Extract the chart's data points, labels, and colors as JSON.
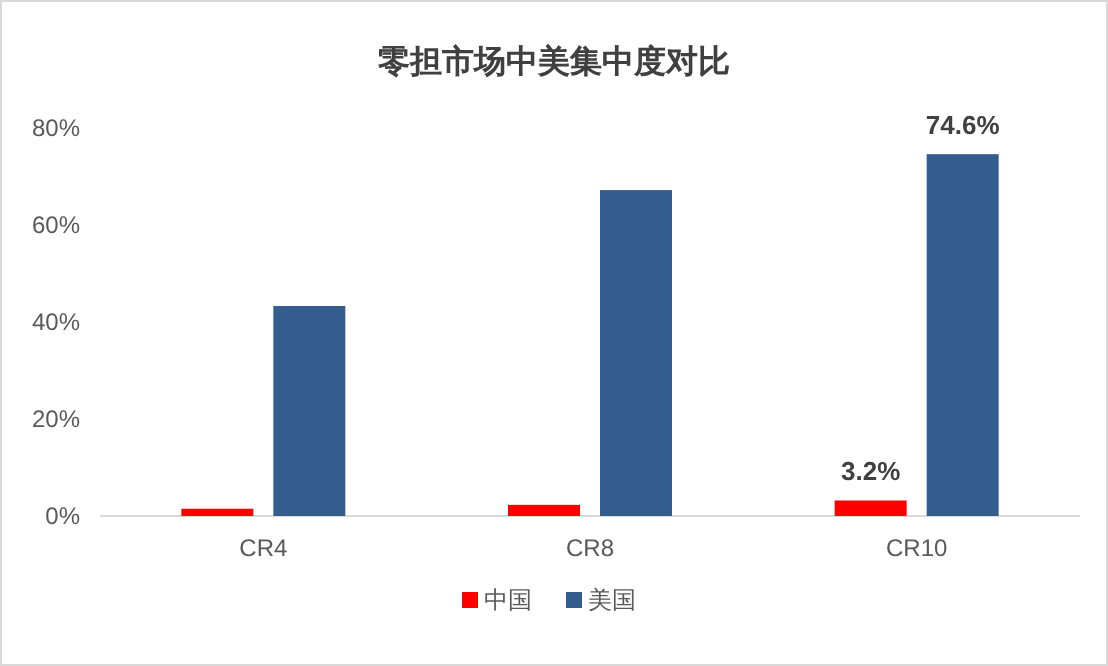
{
  "chart_data": {
    "type": "bar",
    "title": "零担市场中美集中度对比",
    "categories": [
      "CR4",
      "CR8",
      "CR10"
    ],
    "series": [
      {
        "name": "中国",
        "color": "#ff0000",
        "values": [
          1.5,
          2.3,
          3.2
        ],
        "value_labels": [
          null,
          null,
          "3.2%"
        ]
      },
      {
        "name": "美国",
        "color": "#335d8f",
        "values": [
          43.3,
          67.2,
          74.6
        ],
        "value_labels": [
          null,
          null,
          "74.6%"
        ]
      }
    ],
    "ylim": [
      0,
      80
    ],
    "yticks": [
      {
        "value": 0,
        "label": "0%"
      },
      {
        "value": 20,
        "label": "20%"
      },
      {
        "value": 40,
        "label": "40%"
      },
      {
        "value": 60,
        "label": "60%"
      },
      {
        "value": 80,
        "label": "80%"
      }
    ],
    "grid": false,
    "legend": "bottom"
  }
}
